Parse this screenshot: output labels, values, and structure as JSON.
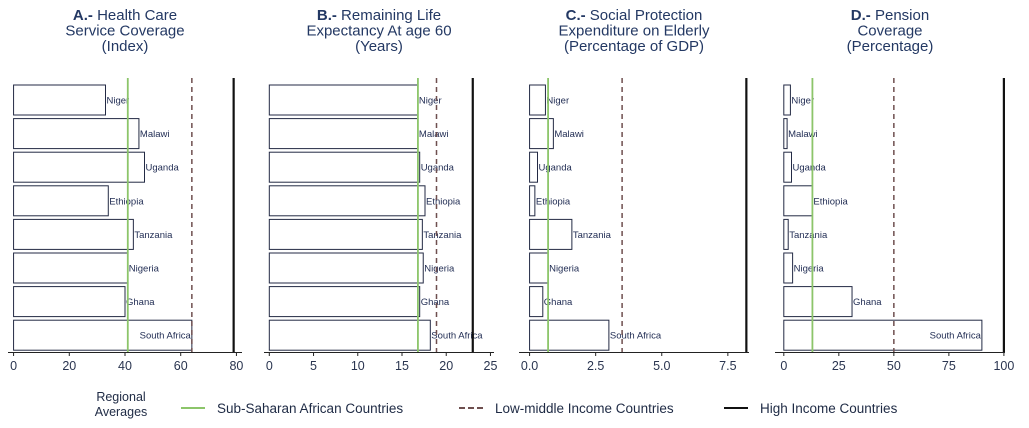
{
  "countries": [
    "Niger",
    "Malawi",
    "Uganda",
    "Ethiopia",
    "Tanzania",
    "Nigeria",
    "Ghana",
    "South Africa"
  ],
  "legend": {
    "title_line1": "Regional",
    "title_line2": "Averages",
    "ssa": "Sub-Saharan African Countries",
    "lmic": "Low-middle Income Countries",
    "hic": "High Income Countries"
  },
  "colors": {
    "ssa": "#8cc56a",
    "lmic": "#6e4f4f",
    "hic": "#111111",
    "bar_stroke": "#232a44",
    "title": "#233863"
  },
  "chart_data": [
    {
      "type": "bar",
      "orientation": "horizontal",
      "title_bold": "A.-",
      "title_lines": [
        "Health Care",
        "Service Coverage",
        "(Index)"
      ],
      "categories": [
        "Niger",
        "Malawi",
        "Uganda",
        "Ethiopia",
        "Tanzania",
        "Nigeria",
        "Ghana",
        "South Africa"
      ],
      "values": [
        33,
        45,
        47,
        34,
        43,
        41,
        40,
        64
      ],
      "xlim": [
        -2,
        82
      ],
      "ticks": [
        0,
        20,
        40,
        60,
        80
      ],
      "tick_labels": [
        "0",
        "20",
        "40",
        "60",
        "80"
      ],
      "reference_lines": {
        "ssa": 41,
        "lmic": 64,
        "hic": 79
      }
    },
    {
      "type": "bar",
      "orientation": "horizontal",
      "title_bold": "B.-",
      "title_lines": [
        "Remaining Life",
        "Expectancy At age 60",
        "(Years)"
      ],
      "categories": [
        "Niger",
        "Malawi",
        "Uganda",
        "Ethiopia",
        "Tanzania",
        "Nigeria",
        "Ghana",
        "South Africa"
      ],
      "values": [
        16.8,
        16.8,
        17.0,
        17.6,
        17.3,
        17.4,
        17.0,
        18.2
      ],
      "xlim": [
        -0.6,
        25.4
      ],
      "ticks": [
        0,
        5,
        10,
        15,
        20,
        25
      ],
      "tick_labels": [
        "0",
        "5",
        "10",
        "15",
        "20",
        "25"
      ],
      "reference_lines": {
        "ssa": 16.8,
        "lmic": 18.9,
        "hic": 23
      }
    },
    {
      "type": "bar",
      "orientation": "horizontal",
      "title_bold": "C.-",
      "title_lines": [
        "Social Protection",
        "Expenditure on Elderly",
        "(Percentage of GDP)"
      ],
      "categories": [
        "Niger",
        "Malawi",
        "Uganda",
        "Ethiopia",
        "Tanzania",
        "Nigeria",
        "Ghana",
        "South Africa"
      ],
      "values": [
        0.6,
        0.9,
        0.3,
        0.2,
        1.6,
        0.7,
        0.5,
        3.0
      ],
      "xlim": [
        -0.4,
        8.3
      ],
      "ticks": [
        0,
        2.5,
        5,
        7.5
      ],
      "tick_labels": [
        "0.0",
        "2.5",
        "5.0",
        "7.5"
      ],
      "reference_lines": {
        "ssa": 0.7,
        "lmic": 3.5,
        "hic": 8.2
      }
    },
    {
      "type": "bar",
      "orientation": "horizontal",
      "title_bold": "D.-",
      "title_lines": [
        "Pension",
        "Coverage",
        "(Percentage)"
      ],
      "categories": [
        "Niger",
        "Malawi",
        "Uganda",
        "Ethiopia",
        "Tanzania",
        "Nigeria",
        "Ghana",
        "South Africa"
      ],
      "values": [
        3,
        1.5,
        3.5,
        13,
        2,
        4,
        31,
        90
      ],
      "xlim": [
        -4,
        100.5
      ],
      "ticks": [
        0,
        25,
        50,
        75,
        100
      ],
      "tick_labels": [
        "0",
        "25",
        "50",
        "75",
        "100"
      ],
      "reference_lines": {
        "ssa": 13,
        "lmic": 50,
        "hic": 100
      }
    }
  ]
}
